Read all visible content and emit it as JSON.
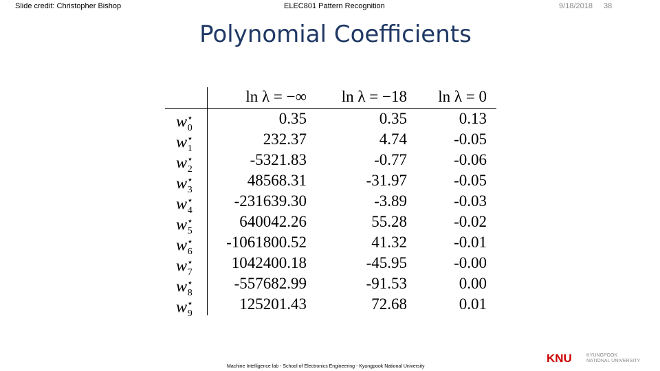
{
  "header": {
    "credit": "Slide credit: Christopher Bishop",
    "course": "ELEC801 Pattern Recognition",
    "date": "9/18/2018",
    "page": "38"
  },
  "title": "Polynomial Coefficients",
  "table": {
    "columns": [
      "ln λ = −∞",
      "ln λ = −18",
      "ln λ = 0"
    ],
    "rows": [
      {
        "var": "w",
        "sup": "⋆",
        "sub": "0",
        "cells": [
          "0.35",
          "0.35",
          "0.13"
        ]
      },
      {
        "var": "w",
        "sup": "⋆",
        "sub": "1",
        "cells": [
          "232.37",
          "4.74",
          "-0.05"
        ]
      },
      {
        "var": "w",
        "sup": "⋆",
        "sub": "2",
        "cells": [
          "-5321.83",
          "-0.77",
          "-0.06"
        ]
      },
      {
        "var": "w",
        "sup": "⋆",
        "sub": "3",
        "cells": [
          "48568.31",
          "-31.97",
          "-0.05"
        ]
      },
      {
        "var": "w",
        "sup": "⋆",
        "sub": "4",
        "cells": [
          "-231639.30",
          "-3.89",
          "-0.03"
        ]
      },
      {
        "var": "w",
        "sup": "⋆",
        "sub": "5",
        "cells": [
          "640042.26",
          "55.28",
          "-0.02"
        ]
      },
      {
        "var": "w",
        "sup": "⋆",
        "sub": "6",
        "cells": [
          "-1061800.52",
          "41.32",
          "-0.01"
        ]
      },
      {
        "var": "w",
        "sup": "⋆",
        "sub": "7",
        "cells": [
          "1042400.18",
          "-45.95",
          "-0.00"
        ]
      },
      {
        "var": "w",
        "sup": "⋆",
        "sub": "8",
        "cells": [
          "-557682.99",
          "-91.53",
          "0.00"
        ]
      },
      {
        "var": "w",
        "sup": "⋆",
        "sub": "9",
        "cells": [
          "125201.43",
          "72.68",
          "0.01"
        ]
      }
    ]
  },
  "footer": {
    "text": "Machine Intelligence lab - School of Electronics Engineering - Kyungpook National University",
    "logo": "KNU",
    "logo_sub1": "KYUNGPOOK",
    "logo_sub2": "NATIONAL UNIVERSITY"
  }
}
